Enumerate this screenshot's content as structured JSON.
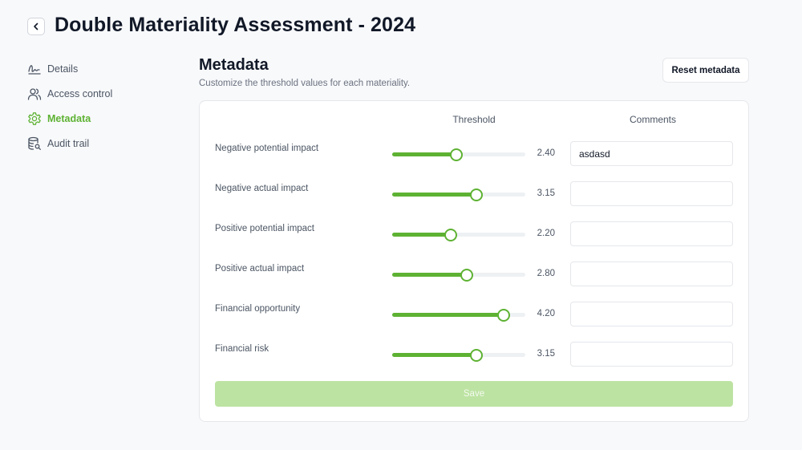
{
  "header": {
    "title": "Double Materiality Assessment - 2024"
  },
  "sidebar": {
    "items": [
      {
        "label": "Details",
        "icon": "signature-icon",
        "active": false
      },
      {
        "label": "Access control",
        "icon": "users-icon",
        "active": false
      },
      {
        "label": "Metadata",
        "icon": "gear-icon",
        "active": true
      },
      {
        "label": "Audit trail",
        "icon": "database-search-icon",
        "active": false
      }
    ]
  },
  "main": {
    "title": "Metadata",
    "subtitle": "Customize the threshold values for each materiality.",
    "reset_label": "Reset metadata",
    "columns": {
      "threshold": "Threshold",
      "comments": "Comments"
    },
    "slider_range": {
      "min": 0,
      "max": 5
    },
    "rows": [
      {
        "label": "Negative potential impact",
        "value": "2.40",
        "comment": "asdasd"
      },
      {
        "label": "Negative actual impact",
        "value": "3.15",
        "comment": ""
      },
      {
        "label": "Positive potential impact",
        "value": "2.20",
        "comment": ""
      },
      {
        "label": "Positive actual impact",
        "value": "2.80",
        "comment": ""
      },
      {
        "label": "Financial opportunity",
        "value": "4.20",
        "comment": ""
      },
      {
        "label": "Financial risk",
        "value": "3.15",
        "comment": ""
      }
    ],
    "save_label": "Save"
  },
  "colors": {
    "accent": "#5eb233",
    "save_disabled_bg": "#bde3a3",
    "track": "#eef1f4"
  }
}
